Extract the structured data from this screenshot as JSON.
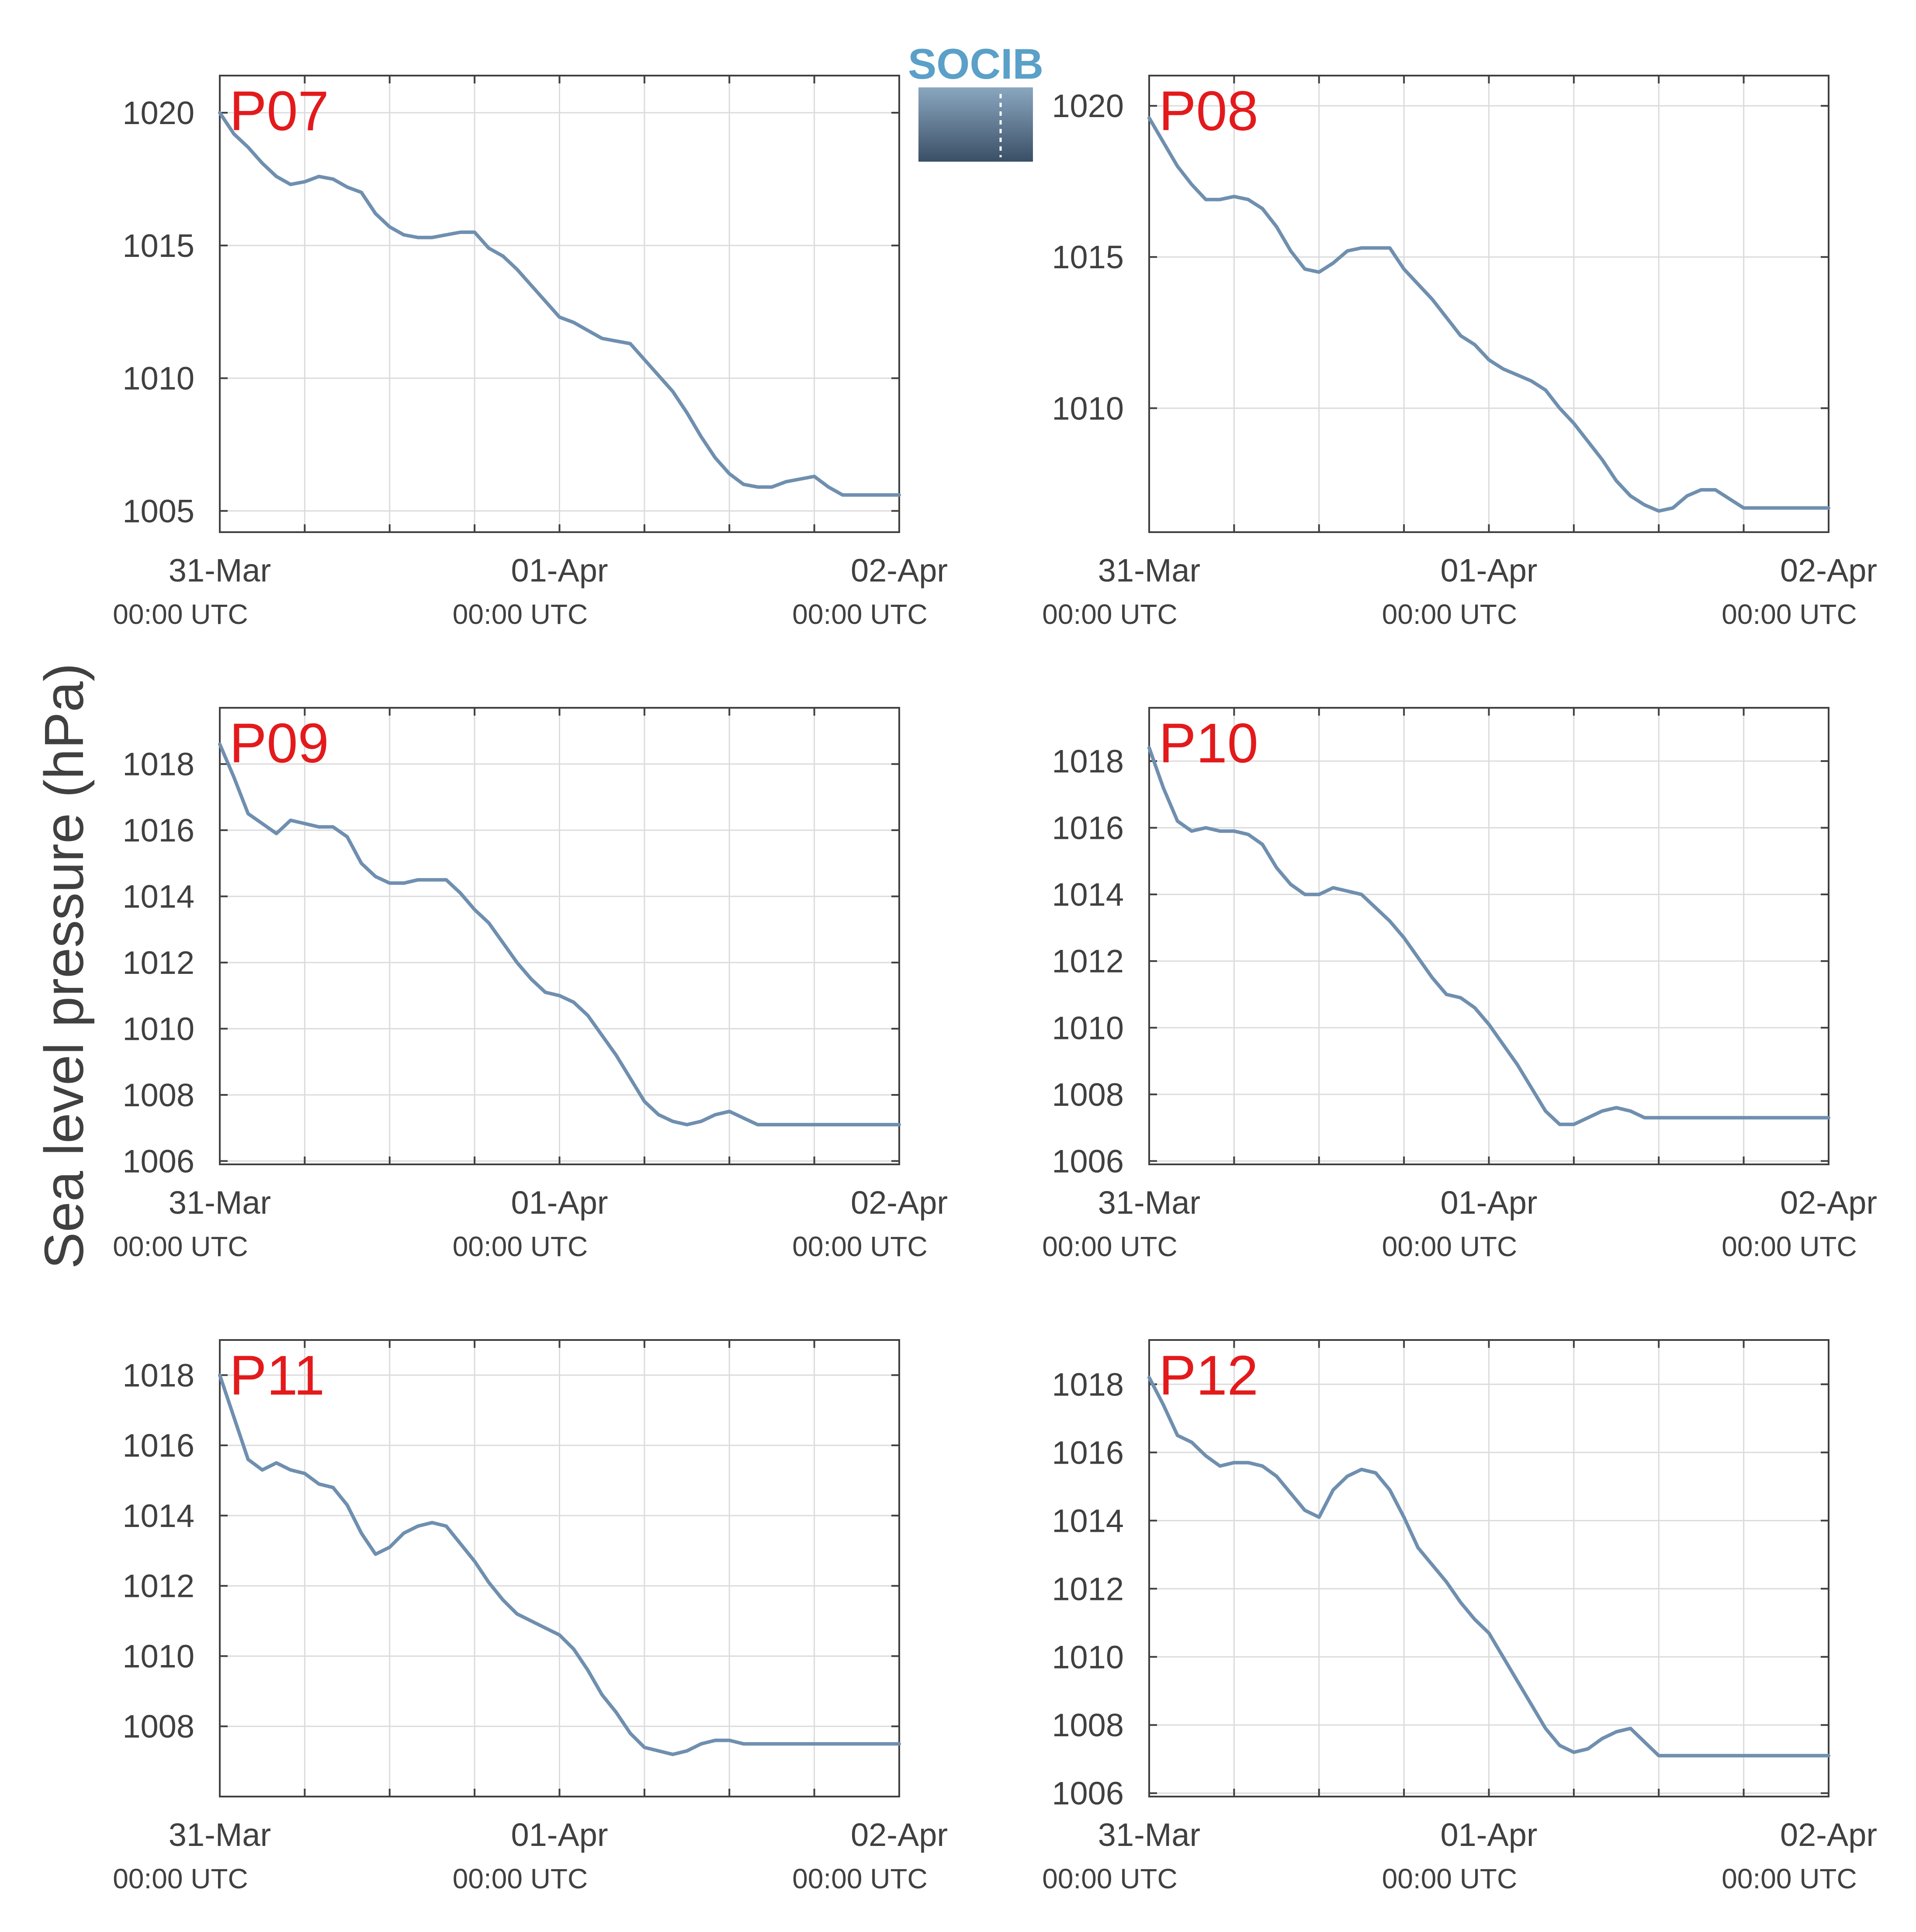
{
  "ylabel": "Sea level pressure (hPa)",
  "logo": {
    "text": "SOCIB",
    "text_color": "#5aa0c8",
    "top_color": "#8aa7c0",
    "bottom_color": "#3a4f66"
  },
  "colors": {
    "series": "#6f8faf",
    "panel_label": "#e31a1c",
    "grid": "#dcdcdc",
    "axis": "#404040"
  },
  "x_ticks": [
    {
      "date": "31-Mar",
      "time": "00:00 UTC",
      "hour": 0
    },
    {
      "date": "01-Apr",
      "time": "00:00 UTC",
      "hour": 24
    },
    {
      "date": "02-Apr",
      "time": "00:00 UTC",
      "hour": 48
    }
  ],
  "chart_data": [
    {
      "type": "line",
      "label": "P07",
      "xlim": [
        0,
        48
      ],
      "ylim": [
        1004.2,
        1021.4
      ],
      "yticks": [
        1005,
        1010,
        1015,
        1020
      ],
      "grid": true,
      "xlabel": "",
      "x": [
        0,
        1,
        2,
        3,
        4,
        5,
        6,
        7,
        8,
        9,
        10,
        11,
        12,
        13,
        14,
        15,
        16,
        17,
        18,
        19,
        20,
        21,
        22,
        23,
        24,
        25,
        26,
        27,
        28,
        29,
        30,
        31,
        32,
        33,
        34,
        35,
        36,
        37,
        38,
        39,
        40,
        41,
        42,
        43,
        44,
        45,
        46,
        47,
        48
      ],
      "values": [
        1020.0,
        1019.2,
        1018.7,
        1018.1,
        1017.6,
        1017.3,
        1017.4,
        1017.6,
        1017.5,
        1017.2,
        1017.0,
        1016.2,
        1015.7,
        1015.4,
        1015.3,
        1015.3,
        1015.4,
        1015.5,
        1015.5,
        1014.9,
        1014.6,
        1014.1,
        1013.5,
        1012.9,
        1012.3,
        1012.1,
        1011.8,
        1011.5,
        1011.4,
        1011.3,
        1010.7,
        1010.1,
        1009.5,
        1008.7,
        1007.8,
        1007.0,
        1006.4,
        1006.0,
        1005.9,
        1005.9,
        1006.1,
        1006.2,
        1006.3,
        1005.9,
        1005.6,
        1005.6,
        1005.6,
        1005.6,
        1005.6
      ]
    },
    {
      "type": "line",
      "label": "P08",
      "xlim": [
        0,
        48
      ],
      "ylim": [
        1005.9,
        1021.0
      ],
      "yticks": [
        1010,
        1015,
        1020
      ],
      "grid": true,
      "xlabel": "",
      "x": [
        0,
        1,
        2,
        3,
        4,
        5,
        6,
        7,
        8,
        9,
        10,
        11,
        12,
        13,
        14,
        15,
        16,
        17,
        18,
        19,
        20,
        21,
        22,
        23,
        24,
        25,
        26,
        27,
        28,
        29,
        30,
        31,
        32,
        33,
        34,
        35,
        36,
        37,
        38,
        39,
        40,
        41,
        42,
        43,
        44,
        45,
        46,
        47,
        48
      ],
      "values": [
        1019.6,
        1018.8,
        1018.0,
        1017.4,
        1016.9,
        1016.9,
        1017.0,
        1016.9,
        1016.6,
        1016.0,
        1015.2,
        1014.6,
        1014.5,
        1014.8,
        1015.2,
        1015.3,
        1015.3,
        1015.3,
        1014.6,
        1014.1,
        1013.6,
        1013.0,
        1012.4,
        1012.1,
        1011.6,
        1011.3,
        1011.1,
        1010.9,
        1010.6,
        1010.0,
        1009.5,
        1008.9,
        1008.3,
        1007.6,
        1007.1,
        1006.8,
        1006.6,
        1006.7,
        1007.1,
        1007.3,
        1007.3,
        1007.0,
        1006.7,
        1006.7,
        1006.7,
        1006.7,
        1006.7,
        1006.7,
        1006.7
      ]
    },
    {
      "type": "line",
      "label": "P09",
      "xlim": [
        0,
        48
      ],
      "ylim": [
        1005.9,
        1019.7
      ],
      "yticks": [
        1006,
        1008,
        1010,
        1012,
        1014,
        1016,
        1018
      ],
      "grid": true,
      "xlabel": "",
      "x": [
        0,
        1,
        2,
        3,
        4,
        5,
        6,
        7,
        8,
        9,
        10,
        11,
        12,
        13,
        14,
        15,
        16,
        17,
        18,
        19,
        20,
        21,
        22,
        23,
        24,
        25,
        26,
        27,
        28,
        29,
        30,
        31,
        32,
        33,
        34,
        35,
        36,
        37,
        38,
        39,
        40,
        41,
        42,
        43,
        44,
        45,
        46,
        47,
        48
      ],
      "values": [
        1018.6,
        1017.6,
        1016.5,
        1016.2,
        1015.9,
        1016.3,
        1016.2,
        1016.1,
        1016.1,
        1015.8,
        1015.0,
        1014.6,
        1014.4,
        1014.4,
        1014.5,
        1014.5,
        1014.5,
        1014.1,
        1013.6,
        1013.2,
        1012.6,
        1012.0,
        1011.5,
        1011.1,
        1011.0,
        1010.8,
        1010.4,
        1009.8,
        1009.2,
        1008.5,
        1007.8,
        1007.4,
        1007.2,
        1007.1,
        1007.2,
        1007.4,
        1007.5,
        1007.3,
        1007.1,
        1007.1,
        1007.1,
        1007.1,
        1007.1,
        1007.1,
        1007.1,
        1007.1,
        1007.1,
        1007.1,
        1007.1
      ]
    },
    {
      "type": "line",
      "label": "P10",
      "xlim": [
        0,
        48
      ],
      "ylim": [
        1005.9,
        1019.6
      ],
      "yticks": [
        1006,
        1008,
        1010,
        1012,
        1014,
        1016,
        1018
      ],
      "grid": true,
      "xlabel": "",
      "x": [
        0,
        1,
        2,
        3,
        4,
        5,
        6,
        7,
        8,
        9,
        10,
        11,
        12,
        13,
        14,
        15,
        16,
        17,
        18,
        19,
        20,
        21,
        22,
        23,
        24,
        25,
        26,
        27,
        28,
        29,
        30,
        31,
        32,
        33,
        34,
        35,
        36,
        37,
        38,
        39,
        40,
        41,
        42,
        43,
        44,
        45,
        46,
        47,
        48
      ],
      "values": [
        1018.4,
        1017.2,
        1016.2,
        1015.9,
        1016.0,
        1015.9,
        1015.9,
        1015.8,
        1015.5,
        1014.8,
        1014.3,
        1014.0,
        1014.0,
        1014.2,
        1014.1,
        1014.0,
        1013.6,
        1013.2,
        1012.7,
        1012.1,
        1011.5,
        1011.0,
        1010.9,
        1010.6,
        1010.1,
        1009.5,
        1008.9,
        1008.2,
        1007.5,
        1007.1,
        1007.1,
        1007.3,
        1007.5,
        1007.6,
        1007.5,
        1007.3,
        1007.3,
        1007.3,
        1007.3,
        1007.3,
        1007.3,
        1007.3,
        1007.3,
        1007.3,
        1007.3,
        1007.3,
        1007.3,
        1007.3,
        1007.3
      ]
    },
    {
      "type": "line",
      "label": "P11",
      "xlim": [
        0,
        48
      ],
      "ylim": [
        1006.0,
        1019.0
      ],
      "yticks": [
        1008,
        1010,
        1012,
        1014,
        1016,
        1018
      ],
      "grid": true,
      "xlabel": "",
      "x": [
        0,
        1,
        2,
        3,
        4,
        5,
        6,
        7,
        8,
        9,
        10,
        11,
        12,
        13,
        14,
        15,
        16,
        17,
        18,
        19,
        20,
        21,
        22,
        23,
        24,
        25,
        26,
        27,
        28,
        29,
        30,
        31,
        32,
        33,
        34,
        35,
        36,
        37,
        38,
        39,
        40,
        41,
        42,
        43,
        44,
        45,
        46,
        47,
        48
      ],
      "values": [
        1018.0,
        1016.8,
        1015.6,
        1015.3,
        1015.5,
        1015.3,
        1015.2,
        1014.9,
        1014.8,
        1014.3,
        1013.5,
        1012.9,
        1013.1,
        1013.5,
        1013.7,
        1013.8,
        1013.7,
        1013.2,
        1012.7,
        1012.1,
        1011.6,
        1011.2,
        1011.0,
        1010.8,
        1010.6,
        1010.2,
        1009.6,
        1008.9,
        1008.4,
        1007.8,
        1007.4,
        1007.3,
        1007.2,
        1007.3,
        1007.5,
        1007.6,
        1007.6,
        1007.5,
        1007.5,
        1007.5,
        1007.5,
        1007.5,
        1007.5,
        1007.5,
        1007.5,
        1007.5,
        1007.5,
        1007.5,
        1007.5
      ]
    },
    {
      "type": "line",
      "label": "P12",
      "xlim": [
        0,
        48
      ],
      "ylim": [
        1005.9,
        1019.3
      ],
      "yticks": [
        1006,
        1008,
        1010,
        1012,
        1014,
        1016,
        1018
      ],
      "grid": true,
      "xlabel": "",
      "x": [
        0,
        1,
        2,
        3,
        4,
        5,
        6,
        7,
        8,
        9,
        10,
        11,
        12,
        13,
        14,
        15,
        16,
        17,
        18,
        19,
        20,
        21,
        22,
        23,
        24,
        25,
        26,
        27,
        28,
        29,
        30,
        31,
        32,
        33,
        34,
        35,
        36,
        37,
        38,
        39,
        40,
        41,
        42,
        43,
        44,
        45,
        46,
        47,
        48
      ],
      "values": [
        1018.2,
        1017.4,
        1016.5,
        1016.3,
        1015.9,
        1015.6,
        1015.7,
        1015.7,
        1015.6,
        1015.3,
        1014.8,
        1014.3,
        1014.1,
        1014.9,
        1015.3,
        1015.5,
        1015.4,
        1014.9,
        1014.1,
        1013.2,
        1012.7,
        1012.2,
        1011.6,
        1011.1,
        1010.7,
        1010.0,
        1009.3,
        1008.6,
        1007.9,
        1007.4,
        1007.2,
        1007.3,
        1007.6,
        1007.8,
        1007.9,
        1007.5,
        1007.1,
        1007.1,
        1007.1,
        1007.1,
        1007.1,
        1007.1,
        1007.1,
        1007.1,
        1007.1,
        1007.1,
        1007.1,
        1007.1,
        1007.1
      ]
    }
  ]
}
